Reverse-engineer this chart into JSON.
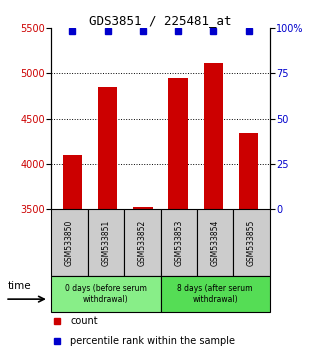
{
  "title": "GDS3851 / 225481_at",
  "samples": [
    "GSM533850",
    "GSM533851",
    "GSM533852",
    "GSM533853",
    "GSM533854",
    "GSM533855"
  ],
  "counts": [
    4100,
    4850,
    3520,
    4950,
    5120,
    4340
  ],
  "ylim_left": [
    3500,
    5500
  ],
  "ylim_right": [
    0,
    100
  ],
  "yticks_left": [
    3500,
    4000,
    4500,
    5000,
    5500
  ],
  "yticks_right": [
    0,
    25,
    50,
    75,
    100
  ],
  "ytick_right_labels": [
    "0",
    "25",
    "50",
    "75",
    "100%"
  ],
  "bar_color": "#cc0000",
  "percentile_color": "#0000cc",
  "bar_bottom": 3500,
  "group0_label": "0 days (before serum\nwithdrawal)",
  "group1_label": "8 days (after serum\nwithdrawal)",
  "group0_samples": [
    0,
    1,
    2
  ],
  "group1_samples": [
    3,
    4,
    5
  ],
  "group0_color": "#88ee88",
  "group1_color": "#55dd55",
  "left_color": "#cc0000",
  "right_color": "#0000cc",
  "sample_box_color": "#cccccc",
  "legend_count_label": "count",
  "legend_percentile_label": "percentile rank within the sample",
  "time_label": "time"
}
